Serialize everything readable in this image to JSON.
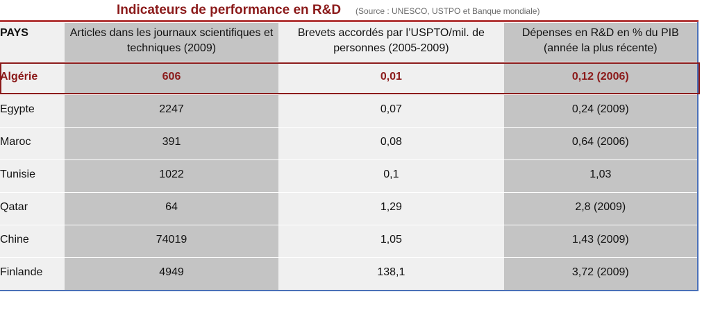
{
  "title": {
    "main": "Indicateurs de performance en R&D",
    "source": "(Source : UNESCO, USTPO et Banque mondiale)"
  },
  "table": {
    "headers": [
      "PAYS",
      "Articles dans les journaux scientifiques et techniques (2009)",
      "Brevets accordés par l’USPTO/mil. de personnes (2005-2009)",
      "Dépenses en R&D  en % du PIB (année la plus récente)"
    ],
    "rows": [
      [
        "Algérie",
        "606",
        "0,01",
        "0,12 (2006)"
      ],
      [
        "Egypte",
        "2247",
        "0,07",
        "0,24 (2009)"
      ],
      [
        "Maroc",
        "391",
        "0,08",
        "0,64 (2006)"
      ],
      [
        "Tunisie",
        "1022",
        "0,1",
        "1,03"
      ],
      [
        "Qatar",
        "64",
        "1,29",
        "2,8 (2009)"
      ],
      [
        "Chine",
        "74019",
        "1,05",
        "1,43 (2009)"
      ],
      [
        "Finlande",
        "4949",
        "138,1",
        "3,72 (2009)"
      ]
    ]
  },
  "colors": {
    "accent": "#8b1a1a",
    "shade": "#c4c4c4",
    "border": "#4a70b8"
  }
}
